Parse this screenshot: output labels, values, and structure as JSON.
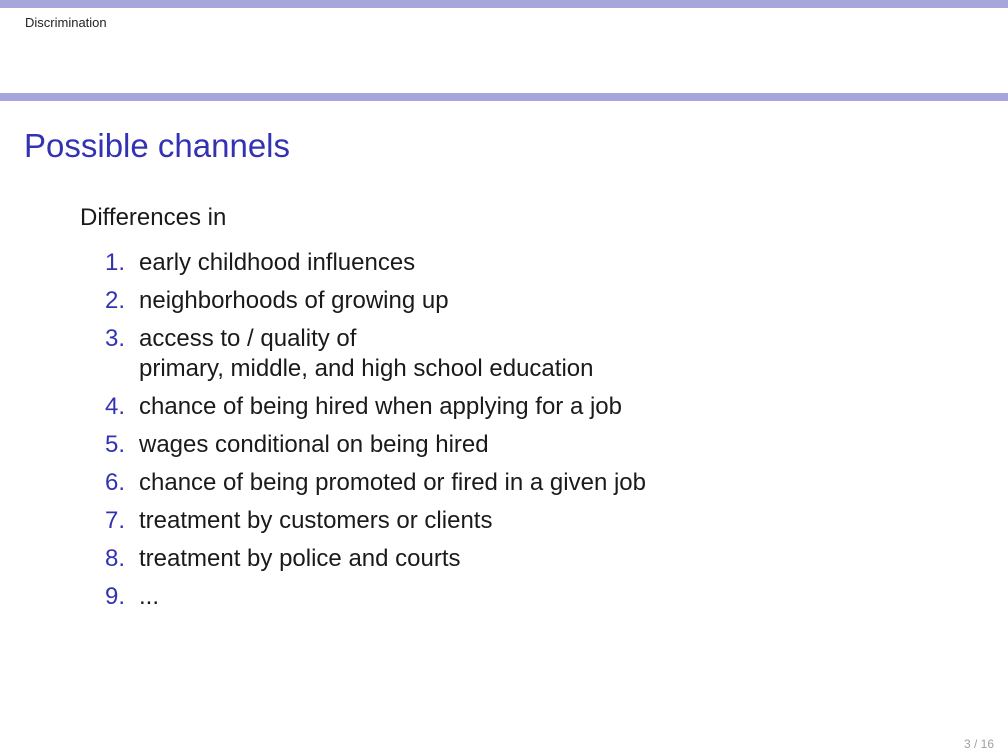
{
  "header": {
    "section": "Discrimination"
  },
  "slide": {
    "title": "Possible channels",
    "intro": "Differences in",
    "items": [
      {
        "number": "1.",
        "text": "early childhood influences"
      },
      {
        "number": "2.",
        "text": "neighborhoods of growing up"
      },
      {
        "number": "3.",
        "text": "access to / quality of\nprimary, middle, and high school education"
      },
      {
        "number": "4.",
        "text": "chance of being hired when applying for a job"
      },
      {
        "number": "5.",
        "text": "wages conditional on being hired"
      },
      {
        "number": "6.",
        "text": "chance of being promoted or fired in a given job"
      },
      {
        "number": "7.",
        "text": "treatment by customers or clients"
      },
      {
        "number": "8.",
        "text": "treatment by police and courts"
      },
      {
        "number": "9.",
        "text": "..."
      }
    ]
  },
  "footer": {
    "page": "3 / 16"
  },
  "colors": {
    "accent": "#3333b2",
    "rule": "#a6a6dc",
    "text": "#1a1a1a"
  }
}
